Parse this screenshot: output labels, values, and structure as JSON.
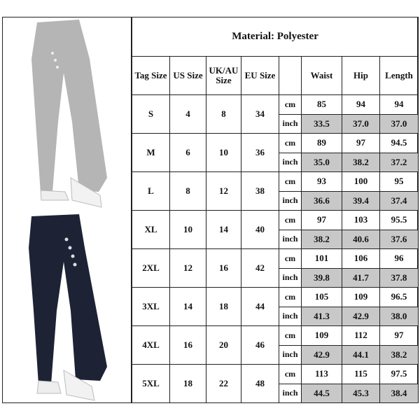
{
  "title": "Material: Polyester",
  "headers": [
    "Tag Size",
    "US Size",
    "UK/AU Size",
    "EU Size",
    "",
    "Waist",
    "Hip",
    "Length"
  ],
  "units": [
    "cm",
    "inch"
  ],
  "colors": {
    "inch_row_fill": "#c8c8c8",
    "border": "#222222",
    "top_pants": "#b5b5b5",
    "bottom_pants": "#1e2235"
  },
  "rows": [
    {
      "tag": "S",
      "us": "4",
      "uk": "8",
      "eu": "34",
      "cm": [
        "85",
        "94",
        "94"
      ],
      "inch": [
        "33.5",
        "37.0",
        "37.0"
      ]
    },
    {
      "tag": "M",
      "us": "6",
      "uk": "10",
      "eu": "36",
      "cm": [
        "89",
        "97",
        "94.5"
      ],
      "inch": [
        "35.0",
        "38.2",
        "37.2"
      ]
    },
    {
      "tag": "L",
      "us": "8",
      "uk": "12",
      "eu": "38",
      "cm": [
        "93",
        "100",
        "95"
      ],
      "inch": [
        "36.6",
        "39.4",
        "37.4"
      ]
    },
    {
      "tag": "XL",
      "us": "10",
      "uk": "14",
      "eu": "40",
      "cm": [
        "97",
        "103",
        "95.5"
      ],
      "inch": [
        "38.2",
        "40.6",
        "37.6"
      ]
    },
    {
      "tag": "2XL",
      "us": "12",
      "uk": "16",
      "eu": "42",
      "cm": [
        "101",
        "106",
        "96"
      ],
      "inch": [
        "39.8",
        "41.7",
        "37.8"
      ]
    },
    {
      "tag": "3XL",
      "us": "14",
      "uk": "18",
      "eu": "44",
      "cm": [
        "105",
        "109",
        "96.5"
      ],
      "inch": [
        "41.3",
        "42.9",
        "38.0"
      ]
    },
    {
      "tag": "4XL",
      "us": "16",
      "uk": "20",
      "eu": "46",
      "cm": [
        "109",
        "112",
        "97"
      ],
      "inch": [
        "42.9",
        "44.1",
        "38.2"
      ]
    },
    {
      "tag": "5XL",
      "us": "18",
      "uk": "22",
      "eu": "48",
      "cm": [
        "113",
        "115",
        "97.5"
      ],
      "inch": [
        "44.5",
        "45.3",
        "38.4"
      ]
    }
  ]
}
